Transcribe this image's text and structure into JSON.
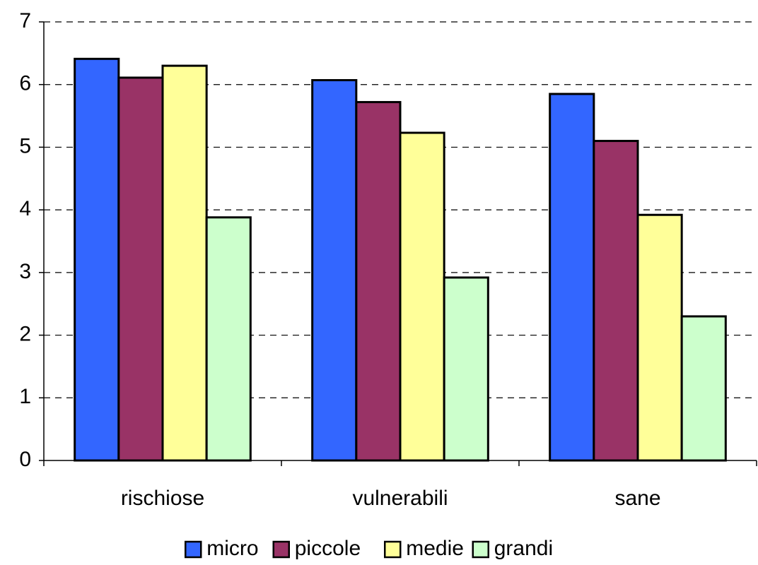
{
  "chart_data": {
    "type": "bar",
    "categories": [
      "rischiose",
      "vulnerabili",
      "sane"
    ],
    "series": [
      {
        "name": "micro",
        "color": "#3366ff",
        "values": [
          6.41,
          6.07,
          5.85
        ]
      },
      {
        "name": "piccole",
        "color": "#993366",
        "values": [
          6.11,
          5.72,
          5.1
        ]
      },
      {
        "name": "medie",
        "color": "#ffff99",
        "values": [
          6.3,
          5.23,
          3.92
        ]
      },
      {
        "name": "grandi",
        "color": "#ccffcc",
        "values": [
          3.88,
          2.92,
          2.3
        ]
      }
    ],
    "ylim": [
      0,
      7
    ],
    "yticks": [
      0,
      1,
      2,
      3,
      4,
      5,
      6,
      7
    ],
    "grid": true,
    "legend": "bottom"
  }
}
